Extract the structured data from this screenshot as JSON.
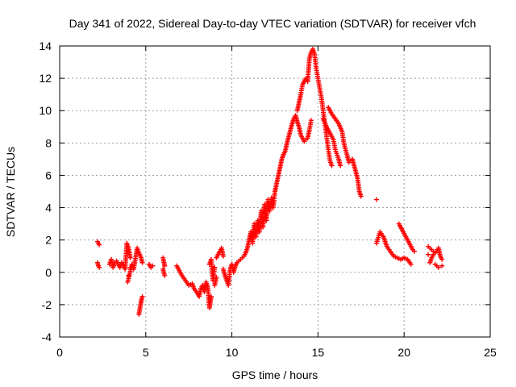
{
  "chart_data": {
    "type": "scatter",
    "title": "Day 341 of 2022, Sidereal Day-to-day VTEC variation (SDTVAR) for receiver vfch",
    "xlabel": "GPS time / hours",
    "ylabel": "SDTVAR / TECUs",
    "xlim": [
      0,
      25
    ],
    "ylim": [
      -4,
      14
    ],
    "xticks": [
      0,
      5,
      10,
      15,
      20,
      25
    ],
    "yticks": [
      -4,
      -2,
      0,
      2,
      4,
      6,
      8,
      10,
      12,
      14
    ],
    "grid": true,
    "marker": "plus",
    "color": "#ff0000",
    "series": [
      {
        "name": "SDTVAR",
        "points": [
          [
            2.2,
            1.9
          ],
          [
            2.25,
            1.8
          ],
          [
            2.3,
            1.7
          ],
          [
            2.2,
            0.6
          ],
          [
            2.25,
            0.4
          ],
          [
            2.3,
            0.3
          ],
          [
            2.9,
            0.5
          ],
          [
            3.0,
            0.8
          ],
          [
            3.1,
            0.3
          ],
          [
            3.2,
            0.6
          ],
          [
            3.3,
            0.7
          ],
          [
            3.4,
            0.5
          ],
          [
            3.5,
            0.3
          ],
          [
            3.6,
            0.6
          ],
          [
            3.7,
            0.4
          ],
          [
            3.8,
            0.2
          ],
          [
            3.9,
            1.8
          ],
          [
            4.0,
            1.5
          ],
          [
            4.05,
            1.2
          ],
          [
            4.1,
            0.9
          ],
          [
            4.1,
            0.3
          ],
          [
            4.0,
            -0.2
          ],
          [
            3.95,
            -0.6
          ],
          [
            4.2,
            0.5
          ],
          [
            4.3,
            0.2
          ],
          [
            4.5,
            1.5
          ],
          [
            4.6,
            1.2
          ],
          [
            4.7,
            1.0
          ],
          [
            4.8,
            0.6
          ],
          [
            4.6,
            -2.6
          ],
          [
            4.65,
            -2.3
          ],
          [
            4.7,
            -2.0
          ],
          [
            4.75,
            -1.7
          ],
          [
            4.8,
            -1.5
          ],
          [
            5.2,
            0.5
          ],
          [
            5.3,
            0.3
          ],
          [
            5.4,
            0.4
          ],
          [
            6.0,
            0.9
          ],
          [
            6.1,
            0.4
          ],
          [
            6.0,
            0.2
          ],
          [
            6.1,
            -0.2
          ],
          [
            6.8,
            0.4
          ],
          [
            6.9,
            0.2
          ],
          [
            7.0,
            0.0
          ],
          [
            7.1,
            -0.2
          ],
          [
            7.3,
            -0.5
          ],
          [
            7.5,
            -0.8
          ],
          [
            7.7,
            -0.7
          ],
          [
            7.8,
            -1.0
          ],
          [
            8.0,
            -1.3
          ],
          [
            8.1,
            -1.5
          ],
          [
            8.2,
            -1.0
          ],
          [
            8.3,
            -0.8
          ],
          [
            8.4,
            -1.2
          ],
          [
            8.5,
            -0.6
          ],
          [
            8.6,
            -0.9
          ],
          [
            8.7,
            -2.2
          ],
          [
            8.75,
            -1.8
          ],
          [
            8.8,
            -1.5
          ],
          [
            8.7,
            0.5
          ],
          [
            8.8,
            0.8
          ],
          [
            8.9,
            -0.5
          ],
          [
            9.0,
            0.3
          ],
          [
            9.0,
            -0.8
          ],
          [
            9.1,
            -0.3
          ],
          [
            9.1,
            0.9
          ],
          [
            9.2,
            1.1
          ],
          [
            9.3,
            1.3
          ],
          [
            9.4,
            1.5
          ],
          [
            9.5,
            1.0
          ],
          [
            9.5,
            0.2
          ],
          [
            9.6,
            -0.2
          ],
          [
            9.7,
            -0.5
          ],
          [
            9.8,
            -0.8
          ],
          [
            9.9,
            0.2
          ],
          [
            10.0,
            0.5
          ],
          [
            10.1,
            0.0
          ],
          [
            10.2,
            0.4
          ],
          [
            10.3,
            0.6
          ],
          [
            10.5,
            0.8
          ],
          [
            10.7,
            1.0
          ],
          [
            10.8,
            1.2
          ],
          [
            10.9,
            1.5
          ],
          [
            11.0,
            2.0
          ],
          [
            11.1,
            2.5
          ],
          [
            11.2,
            1.8
          ],
          [
            11.3,
            3.0
          ],
          [
            11.4,
            2.2
          ],
          [
            11.5,
            3.2
          ],
          [
            11.6,
            2.5
          ],
          [
            11.7,
            3.8
          ],
          [
            11.8,
            2.8
          ],
          [
            11.9,
            4.2
          ],
          [
            12.0,
            3.2
          ],
          [
            12.1,
            4.5
          ],
          [
            12.2,
            3.8
          ],
          [
            12.3,
            4.6
          ],
          [
            12.4,
            4.0
          ],
          [
            12.5,
            5.0
          ],
          [
            12.6,
            5.5
          ],
          [
            12.7,
            6.0
          ],
          [
            12.8,
            6.5
          ],
          [
            12.9,
            7.0
          ],
          [
            13.0,
            7.3
          ],
          [
            13.1,
            7.5
          ],
          [
            13.2,
            8.0
          ],
          [
            13.3,
            8.4
          ],
          [
            13.4,
            8.8
          ],
          [
            13.5,
            9.2
          ],
          [
            13.6,
            9.5
          ],
          [
            13.7,
            9.7
          ],
          [
            13.8,
            9.3
          ],
          [
            13.9,
            9.0
          ],
          [
            14.0,
            8.5
          ],
          [
            14.2,
            8.1
          ],
          [
            14.4,
            8.3
          ],
          [
            14.5,
            8.8
          ],
          [
            14.6,
            9.4
          ],
          [
            13.8,
            10.0
          ],
          [
            13.9,
            10.5
          ],
          [
            14.0,
            11.0
          ],
          [
            14.1,
            11.6
          ],
          [
            14.2,
            11.8
          ],
          [
            14.3,
            12.0
          ],
          [
            14.4,
            11.8
          ],
          [
            14.5,
            13.2
          ],
          [
            14.6,
            13.6
          ],
          [
            14.7,
            13.8
          ],
          [
            14.8,
            13.5
          ],
          [
            14.9,
            12.6
          ],
          [
            15.0,
            12.0
          ],
          [
            15.1,
            11.4
          ],
          [
            15.2,
            10.8
          ],
          [
            15.3,
            10.0
          ],
          [
            15.4,
            9.2
          ],
          [
            15.5,
            8.4
          ],
          [
            15.6,
            7.6
          ],
          [
            15.7,
            6.9
          ],
          [
            15.8,
            6.6
          ],
          [
            15.3,
            9.5
          ],
          [
            15.5,
            9.0
          ],
          [
            15.7,
            8.6
          ],
          [
            15.9,
            8.2
          ],
          [
            16.0,
            7.6
          ],
          [
            16.2,
            7.0
          ],
          [
            16.3,
            6.6
          ],
          [
            15.6,
            10.2
          ],
          [
            15.8,
            9.8
          ],
          [
            16.0,
            9.5
          ],
          [
            16.2,
            9.2
          ],
          [
            16.4,
            8.7
          ],
          [
            16.5,
            8.0
          ],
          [
            16.7,
            7.2
          ],
          [
            16.8,
            6.8
          ],
          [
            17.0,
            7.0
          ],
          [
            17.1,
            6.6
          ],
          [
            17.2,
            6.2
          ],
          [
            17.3,
            5.8
          ],
          [
            17.4,
            5.0
          ],
          [
            17.5,
            4.7
          ],
          [
            18.4,
            4.5
          ],
          [
            18.4,
            1.8
          ],
          [
            18.6,
            2.5
          ],
          [
            18.8,
            2.2
          ],
          [
            18.9,
            1.9
          ],
          [
            19.0,
            1.6
          ],
          [
            19.2,
            1.3
          ],
          [
            19.4,
            1.0
          ],
          [
            19.6,
            0.9
          ],
          [
            19.8,
            0.8
          ],
          [
            20.0,
            0.9
          ],
          [
            20.2,
            0.8
          ],
          [
            20.4,
            0.5
          ],
          [
            19.7,
            3.0
          ],
          [
            19.9,
            2.6
          ],
          [
            20.1,
            2.2
          ],
          [
            20.3,
            1.8
          ],
          [
            20.5,
            1.4
          ],
          [
            20.6,
            1.3
          ],
          [
            21.4,
            1.6
          ],
          [
            21.6,
            1.4
          ],
          [
            21.8,
            1.2
          ],
          [
            22.0,
            1.5
          ],
          [
            22.1,
            1.0
          ],
          [
            22.2,
            0.8
          ],
          [
            22.2,
            0.4
          ],
          [
            21.5,
            0.6
          ],
          [
            21.6,
            0.9
          ],
          [
            21.7,
            1.1
          ],
          [
            21.4,
            1.1
          ],
          [
            21.8,
            0.5
          ],
          [
            22.0,
            0.3
          ]
        ]
      }
    ]
  }
}
